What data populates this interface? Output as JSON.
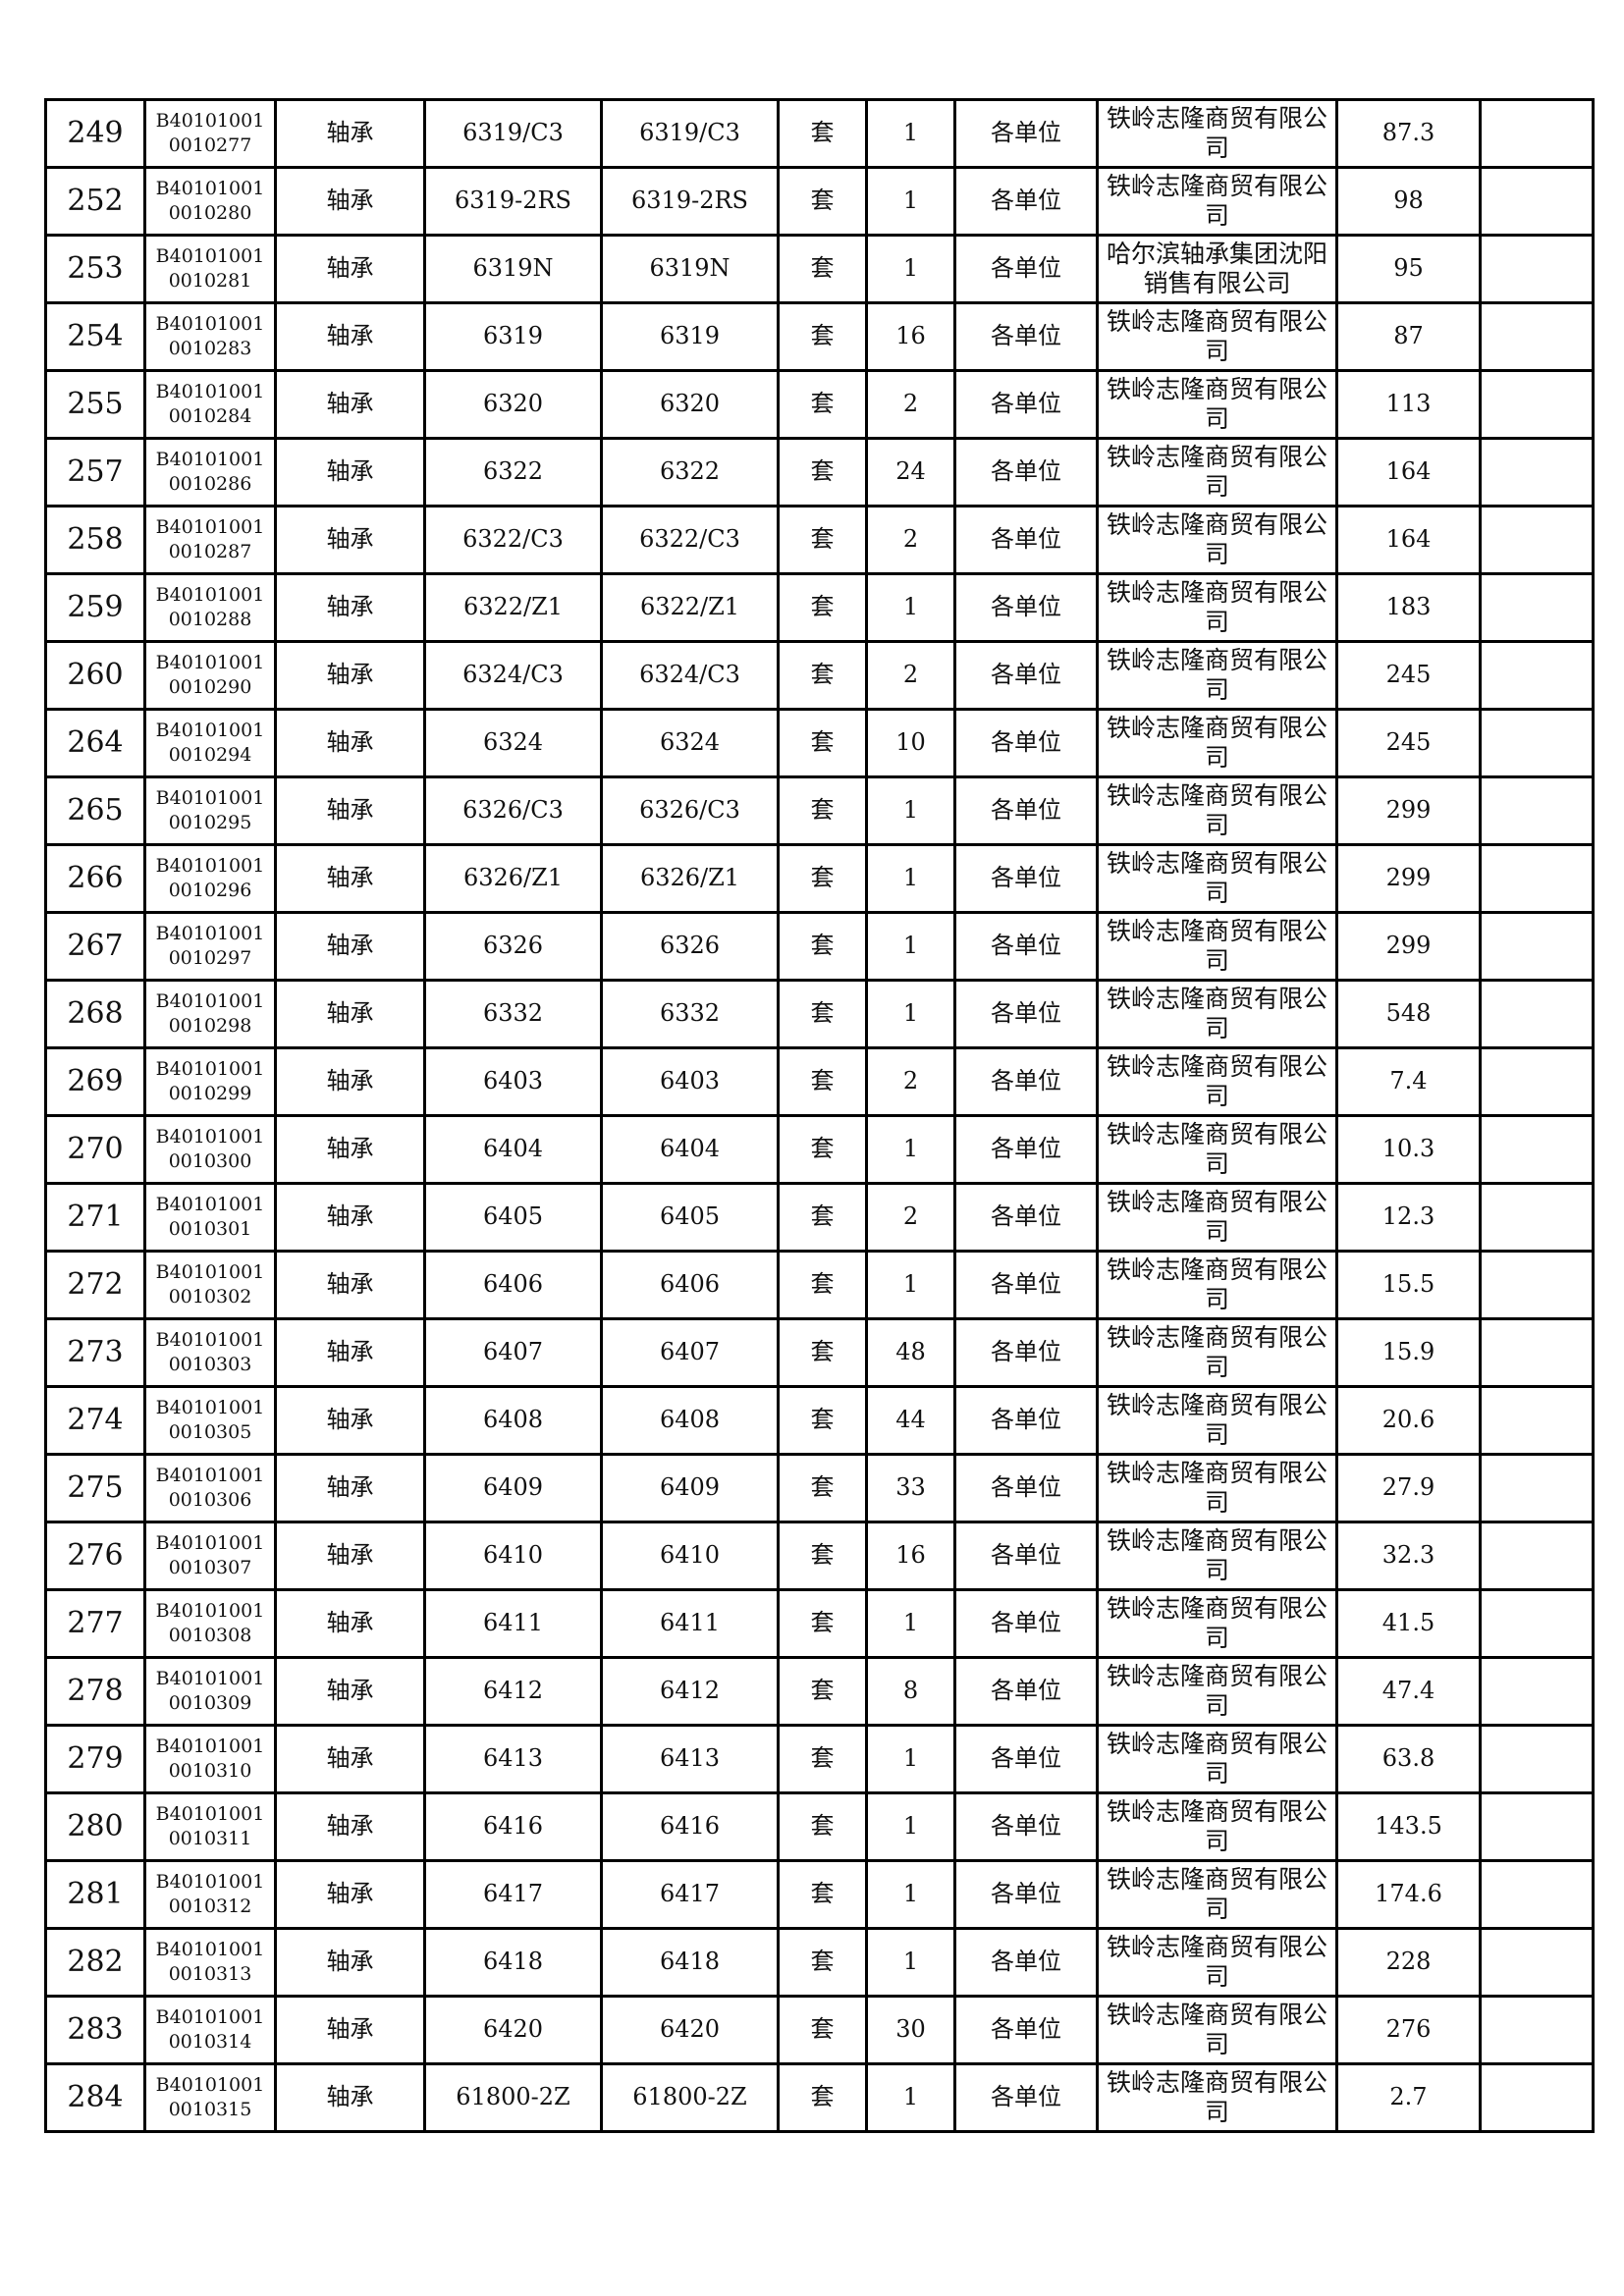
{
  "rows": [
    {
      "no": "249",
      "code": "B401010010010277",
      "name": "轴承",
      "spec": "6319/C3",
      "model": "6319/C3",
      "unit": "套",
      "qty": "1",
      "dept": "各单位",
      "supplier": "铁岭志隆商贸有限公司",
      "price": "87.3",
      "note": ""
    },
    {
      "no": "252",
      "code": "B401010010010280",
      "name": "轴承",
      "spec": "6319-2RS",
      "model": "6319-2RS",
      "unit": "套",
      "qty": "1",
      "dept": "各单位",
      "supplier": "铁岭志隆商贸有限公司",
      "price": "98",
      "note": ""
    },
    {
      "no": "253",
      "code": "B401010010010281",
      "name": "轴承",
      "spec": "6319N",
      "model": "6319N",
      "unit": "套",
      "qty": "1",
      "dept": "各单位",
      "supplier": "哈尔滨轴承集团沈阳销售有限公司",
      "price": "95",
      "note": ""
    },
    {
      "no": "254",
      "code": "B401010010010283",
      "name": "轴承",
      "spec": "6319",
      "model": "6319",
      "unit": "套",
      "qty": "16",
      "dept": "各单位",
      "supplier": "铁岭志隆商贸有限公司",
      "price": "87",
      "note": ""
    },
    {
      "no": "255",
      "code": "B401010010010284",
      "name": "轴承",
      "spec": "6320",
      "model": "6320",
      "unit": "套",
      "qty": "2",
      "dept": "各单位",
      "supplier": "铁岭志隆商贸有限公司",
      "price": "113",
      "note": ""
    },
    {
      "no": "257",
      "code": "B401010010010286",
      "name": "轴承",
      "spec": "6322",
      "model": "6322",
      "unit": "套",
      "qty": "24",
      "dept": "各单位",
      "supplier": "铁岭志隆商贸有限公司",
      "price": "164",
      "note": ""
    },
    {
      "no": "258",
      "code": "B401010010010287",
      "name": "轴承",
      "spec": "6322/C3",
      "model": "6322/C3",
      "unit": "套",
      "qty": "2",
      "dept": "各单位",
      "supplier": "铁岭志隆商贸有限公司",
      "price": "164",
      "note": ""
    },
    {
      "no": "259",
      "code": "B401010010010288",
      "name": "轴承",
      "spec": "6322/Z1",
      "model": "6322/Z1",
      "unit": "套",
      "qty": "1",
      "dept": "各单位",
      "supplier": "铁岭志隆商贸有限公司",
      "price": "183",
      "note": ""
    },
    {
      "no": "260",
      "code": "B401010010010290",
      "name": "轴承",
      "spec": "6324/C3",
      "model": "6324/C3",
      "unit": "套",
      "qty": "2",
      "dept": "各单位",
      "supplier": "铁岭志隆商贸有限公司",
      "price": "245",
      "note": ""
    },
    {
      "no": "264",
      "code": "B401010010010294",
      "name": "轴承",
      "spec": "6324",
      "model": "6324",
      "unit": "套",
      "qty": "10",
      "dept": "各单位",
      "supplier": "铁岭志隆商贸有限公司",
      "price": "245",
      "note": ""
    },
    {
      "no": "265",
      "code": "B401010010010295",
      "name": "轴承",
      "spec": "6326/C3",
      "model": "6326/C3",
      "unit": "套",
      "qty": "1",
      "dept": "各单位",
      "supplier": "铁岭志隆商贸有限公司",
      "price": "299",
      "note": ""
    },
    {
      "no": "266",
      "code": "B401010010010296",
      "name": "轴承",
      "spec": "6326/Z1",
      "model": "6326/Z1",
      "unit": "套",
      "qty": "1",
      "dept": "各单位",
      "supplier": "铁岭志隆商贸有限公司",
      "price": "299",
      "note": ""
    },
    {
      "no": "267",
      "code": "B401010010010297",
      "name": "轴承",
      "spec": "6326",
      "model": "6326",
      "unit": "套",
      "qty": "1",
      "dept": "各单位",
      "supplier": "铁岭志隆商贸有限公司",
      "price": "299",
      "note": ""
    },
    {
      "no": "268",
      "code": "B401010010010298",
      "name": "轴承",
      "spec": "6332",
      "model": "6332",
      "unit": "套",
      "qty": "1",
      "dept": "各单位",
      "supplier": "铁岭志隆商贸有限公司",
      "price": "548",
      "note": ""
    },
    {
      "no": "269",
      "code": "B401010010010299",
      "name": "轴承",
      "spec": "6403",
      "model": "6403",
      "unit": "套",
      "qty": "2",
      "dept": "各单位",
      "supplier": "铁岭志隆商贸有限公司",
      "price": "7.4",
      "note": ""
    },
    {
      "no": "270",
      "code": "B401010010010300",
      "name": "轴承",
      "spec": "6404",
      "model": "6404",
      "unit": "套",
      "qty": "1",
      "dept": "各单位",
      "supplier": "铁岭志隆商贸有限公司",
      "price": "10.3",
      "note": ""
    },
    {
      "no": "271",
      "code": "B401010010010301",
      "name": "轴承",
      "spec": "6405",
      "model": "6405",
      "unit": "套",
      "qty": "2",
      "dept": "各单位",
      "supplier": "铁岭志隆商贸有限公司",
      "price": "12.3",
      "note": ""
    },
    {
      "no": "272",
      "code": "B401010010010302",
      "name": "轴承",
      "spec": "6406",
      "model": "6406",
      "unit": "套",
      "qty": "1",
      "dept": "各单位",
      "supplier": "铁岭志隆商贸有限公司",
      "price": "15.5",
      "note": ""
    },
    {
      "no": "273",
      "code": "B401010010010303",
      "name": "轴承",
      "spec": "6407",
      "model": "6407",
      "unit": "套",
      "qty": "48",
      "dept": "各单位",
      "supplier": "铁岭志隆商贸有限公司",
      "price": "15.9",
      "note": ""
    },
    {
      "no": "274",
      "code": "B401010010010305",
      "name": "轴承",
      "spec": "6408",
      "model": "6408",
      "unit": "套",
      "qty": "44",
      "dept": "各单位",
      "supplier": "铁岭志隆商贸有限公司",
      "price": "20.6",
      "note": ""
    },
    {
      "no": "275",
      "code": "B401010010010306",
      "name": "轴承",
      "spec": "6409",
      "model": "6409",
      "unit": "套",
      "qty": "33",
      "dept": "各单位",
      "supplier": "铁岭志隆商贸有限公司",
      "price": "27.9",
      "note": ""
    },
    {
      "no": "276",
      "code": "B401010010010307",
      "name": "轴承",
      "spec": "6410",
      "model": "6410",
      "unit": "套",
      "qty": "16",
      "dept": "各单位",
      "supplier": "铁岭志隆商贸有限公司",
      "price": "32.3",
      "note": ""
    },
    {
      "no": "277",
      "code": "B401010010010308",
      "name": "轴承",
      "spec": "6411",
      "model": "6411",
      "unit": "套",
      "qty": "1",
      "dept": "各单位",
      "supplier": "铁岭志隆商贸有限公司",
      "price": "41.5",
      "note": ""
    },
    {
      "no": "278",
      "code": "B401010010010309",
      "name": "轴承",
      "spec": "6412",
      "model": "6412",
      "unit": "套",
      "qty": "8",
      "dept": "各单位",
      "supplier": "铁岭志隆商贸有限公司",
      "price": "47.4",
      "note": ""
    },
    {
      "no": "279",
      "code": "B401010010010310",
      "name": "轴承",
      "spec": "6413",
      "model": "6413",
      "unit": "套",
      "qty": "1",
      "dept": "各单位",
      "supplier": "铁岭志隆商贸有限公司",
      "price": "63.8",
      "note": ""
    },
    {
      "no": "280",
      "code": "B401010010010311",
      "name": "轴承",
      "spec": "6416",
      "model": "6416",
      "unit": "套",
      "qty": "1",
      "dept": "各单位",
      "supplier": "铁岭志隆商贸有限公司",
      "price": "143.5",
      "note": ""
    },
    {
      "no": "281",
      "code": "B401010010010312",
      "name": "轴承",
      "spec": "6417",
      "model": "6417",
      "unit": "套",
      "qty": "1",
      "dept": "各单位",
      "supplier": "铁岭志隆商贸有限公司",
      "price": "174.6",
      "note": ""
    },
    {
      "no": "282",
      "code": "B401010010010313",
      "name": "轴承",
      "spec": "6418",
      "model": "6418",
      "unit": "套",
      "qty": "1",
      "dept": "各单位",
      "supplier": "铁岭志隆商贸有限公司",
      "price": "228",
      "note": ""
    },
    {
      "no": "283",
      "code": "B401010010010314",
      "name": "轴承",
      "spec": "6420",
      "model": "6420",
      "unit": "套",
      "qty": "30",
      "dept": "各单位",
      "supplier": "铁岭志隆商贸有限公司",
      "price": "276",
      "note": ""
    },
    {
      "no": "284",
      "code": "B401010010010315",
      "name": "轴承",
      "spec": "61800-2Z",
      "model": "61800-2Z",
      "unit": "套",
      "qty": "1",
      "dept": "各单位",
      "supplier": "铁岭志隆商贸有限公司",
      "price": "2.7",
      "note": ""
    }
  ]
}
